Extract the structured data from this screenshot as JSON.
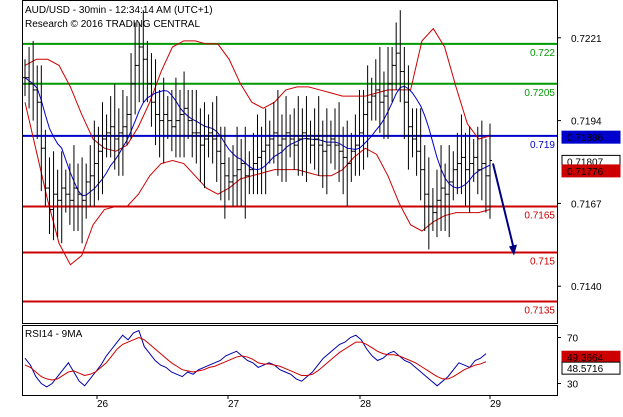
{
  "header": {
    "title": "AUD/USD - 30min - 12:34:14 AM (UTC+1)",
    "subtitle": "Research © 2016 TRADING CENTRAL"
  },
  "chart_data": [
    {
      "type": "candlestick",
      "title": "AUD/USD - 30min - 12:34:14 AM (UTC+1)",
      "ylim": [
        0.7128,
        0.7233
      ],
      "y_ticks": [
        "0.7221",
        "0.7194",
        "0.7167",
        "0.7140"
      ],
      "x_ticks": [
        "26",
        "27",
        "28",
        "29"
      ],
      "grid": false,
      "levels": [
        {
          "label": "0.722",
          "value": 0.7219,
          "color": "#009900"
        },
        {
          "label": "0.7205",
          "value": 0.7206,
          "color": "#009900"
        },
        {
          "label": "0.719",
          "value": 0.7189,
          "color": "#0000cc"
        },
        {
          "label": "0.7165",
          "value": 0.7166,
          "color": "#cc0000"
        },
        {
          "label": "0.715",
          "value": 0.7151,
          "color": "#cc0000"
        },
        {
          "label": "0.7135",
          "value": 0.7135,
          "color": "#cc0000"
        }
      ],
      "price_tags": [
        {
          "label": "0.71886",
          "value": 0.71886,
          "bg": "#0000cc"
        },
        {
          "label": "0.71807",
          "value": 0.71807,
          "bg": "#ffffff"
        },
        {
          "label": "0.71776",
          "value": 0.71776,
          "bg": "#cc0000"
        }
      ],
      "arrow": {
        "from_value": 0.718,
        "to_value": 0.715,
        "color": "#000080"
      },
      "close": [
        0.7208,
        0.7206,
        0.7204,
        0.72,
        0.7185,
        0.7172,
        0.7165,
        0.717,
        0.7168,
        0.7172,
        0.717,
        0.7168,
        0.7172,
        0.717,
        0.7168,
        0.7174,
        0.7176,
        0.718,
        0.7184,
        0.7188,
        0.719,
        0.7192,
        0.7188,
        0.719,
        0.7192,
        0.7196,
        0.7206,
        0.7212,
        0.7218,
        0.7214,
        0.7206,
        0.72,
        0.7196,
        0.7194,
        0.7196,
        0.7194,
        0.7192,
        0.7194,
        0.7196,
        0.7198,
        0.7194,
        0.719,
        0.719,
        0.7186,
        0.7188,
        0.719,
        0.7188,
        0.7184,
        0.718,
        0.7176,
        0.7174,
        0.7176,
        0.7178,
        0.718,
        0.7176,
        0.7178,
        0.718,
        0.7182,
        0.7184,
        0.7186,
        0.7188,
        0.719,
        0.7186,
        0.7188,
        0.719,
        0.7188,
        0.7186,
        0.7188,
        0.719,
        0.7188,
        0.7186,
        0.7188,
        0.7186,
        0.7184,
        0.7186,
        0.7188,
        0.7186,
        0.7184,
        0.7182,
        0.718,
        0.7184,
        0.7186,
        0.719,
        0.7196,
        0.72,
        0.7202,
        0.7204,
        0.72,
        0.7202,
        0.7206,
        0.7212,
        0.7216,
        0.721,
        0.72,
        0.7192,
        0.7188,
        0.7184,
        0.7178,
        0.717,
        0.7166,
        0.7164,
        0.7168,
        0.7172,
        0.717,
        0.7174,
        0.7178,
        0.718,
        0.7182,
        0.7178,
        0.718,
        0.7182,
        0.7178,
        0.718,
        0.7176,
        0.7181
      ],
      "bb_upper": [
        0.7212,
        0.7214,
        0.7214,
        0.7212,
        0.7205,
        0.7196,
        0.7188,
        0.7185,
        0.7184,
        0.7186,
        0.7192,
        0.72,
        0.721,
        0.7218,
        0.722,
        0.722,
        0.7219,
        0.7219,
        0.7214,
        0.7206,
        0.72,
        0.7198,
        0.72,
        0.7204,
        0.7205,
        0.7205,
        0.7204,
        0.7203,
        0.7202,
        0.7202,
        0.7202,
        0.7203,
        0.7204,
        0.7204,
        0.7204,
        0.722,
        0.7224,
        0.7218,
        0.7205,
        0.7193,
        0.7188,
        0.7189
      ],
      "bb_lower": [
        0.72,
        0.7184,
        0.7168,
        0.7154,
        0.7147,
        0.715,
        0.716,
        0.7165,
        0.7166,
        0.7166,
        0.717,
        0.7176,
        0.718,
        0.7181,
        0.718,
        0.7176,
        0.7172,
        0.717,
        0.7172,
        0.7175,
        0.7176,
        0.7177,
        0.7178,
        0.7178,
        0.7178,
        0.7177,
        0.7176,
        0.7176,
        0.7178,
        0.7182,
        0.7185,
        0.7183,
        0.7176,
        0.7167,
        0.716,
        0.7158,
        0.7161,
        0.7163,
        0.7164,
        0.7164,
        0.7164,
        0.7165
      ],
      "rsi_panel": {
        "title": "RSI14 - 9MA",
        "ylim": [
          20,
          80
        ],
        "y_ticks": [
          "70",
          "30"
        ],
        "tags": [
          {
            "label": "49.3664",
            "value": 49.3664,
            "bg": "#cc0000"
          },
          {
            "label": "48.5716",
            "value": 48.5716,
            "bg": "#ffffff"
          }
        ],
        "rsi": [
          52,
          46,
          36,
          30,
          27,
          30,
          36,
          42,
          48,
          40,
          32,
          28,
          34,
          40,
          46,
          54,
          60,
          66,
          72,
          68,
          74,
          76,
          62,
          56,
          50,
          46,
          44,
          40,
          38,
          36,
          40,
          38,
          42,
          44,
          46,
          48,
          50,
          54,
          56,
          58,
          54,
          50,
          48,
          44,
          46,
          48,
          46,
          42,
          40,
          38,
          34,
          32,
          36,
          40,
          46,
          52,
          56,
          60,
          64,
          66,
          70,
          72,
          68,
          60,
          54,
          50,
          52,
          56,
          58,
          54,
          50,
          48,
          44,
          40,
          36,
          32,
          28,
          32,
          36,
          42,
          48,
          46,
          44,
          50,
          52,
          56
        ],
        "ma": [
          46,
          44,
          40,
          36,
          34,
          33,
          34,
          37,
          40,
          41,
          39,
          37,
          38,
          40,
          44,
          48,
          54,
          60,
          64,
          66,
          68,
          70,
          68,
          64,
          60,
          56,
          52,
          48,
          45,
          42,
          41,
          40,
          41,
          42,
          44,
          45,
          47,
          49,
          51,
          53,
          54,
          53,
          51,
          48,
          47,
          47,
          46,
          45,
          43,
          41,
          39,
          37,
          37,
          38,
          41,
          45,
          49,
          53,
          57,
          60,
          63,
          66,
          66,
          64,
          61,
          58,
          56,
          55,
          55,
          54,
          52,
          50,
          48,
          45,
          42,
          39,
          36,
          34,
          34,
          36,
          39,
          42,
          44,
          46,
          47,
          49
        ]
      }
    }
  ]
}
